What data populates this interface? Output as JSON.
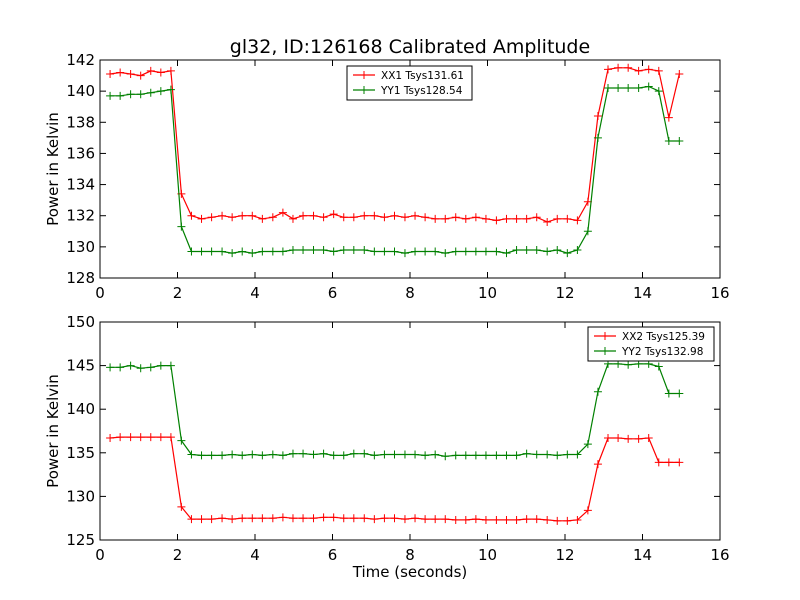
{
  "figure": {
    "title": "gl32, ID:126168 Calibrated Amplitude",
    "background": "#ffffff"
  },
  "chart_data": [
    {
      "type": "line",
      "title": "gl32, ID:126168 Calibrated Amplitude",
      "xlabel": "",
      "ylabel": "Power in Kelvin",
      "xlim": [
        0,
        16
      ],
      "ylim": [
        128,
        142
      ],
      "xticks": [
        0,
        2,
        4,
        6,
        8,
        10,
        12,
        14,
        16
      ],
      "yticks": [
        128,
        130,
        132,
        134,
        136,
        138,
        140,
        142
      ],
      "grid": false,
      "legend_position": "top-center",
      "x": [
        0.26,
        0.52,
        0.79,
        1.05,
        1.31,
        1.57,
        1.83,
        2.1,
        2.36,
        2.62,
        2.88,
        3.15,
        3.41,
        3.67,
        3.93,
        4.19,
        4.46,
        4.72,
        4.98,
        5.24,
        5.51,
        5.77,
        6.03,
        6.29,
        6.55,
        6.82,
        7.08,
        7.34,
        7.6,
        7.87,
        8.13,
        8.39,
        8.65,
        8.91,
        9.18,
        9.44,
        9.7,
        9.96,
        10.23,
        10.49,
        10.75,
        11.01,
        11.27,
        11.54,
        11.8,
        12.06,
        12.32,
        12.59,
        12.85,
        13.11,
        13.37,
        13.63,
        13.9,
        14.16,
        14.42,
        14.68,
        14.95
      ],
      "series": [
        {
          "name": "XX1 Tsys131.61",
          "color": "#ff0000",
          "values": [
            141.1,
            141.2,
            141.1,
            141.0,
            141.3,
            141.2,
            141.3,
            133.4,
            132.0,
            131.8,
            131.9,
            132.0,
            131.9,
            132.0,
            132.0,
            131.8,
            131.9,
            132.2,
            131.8,
            132.0,
            132.0,
            131.9,
            132.1,
            131.9,
            131.9,
            132.0,
            132.0,
            131.9,
            132.0,
            131.9,
            132.0,
            131.9,
            131.8,
            131.8,
            131.9,
            131.8,
            131.9,
            131.8,
            131.7,
            131.8,
            131.8,
            131.8,
            131.9,
            131.6,
            131.8,
            131.8,
            131.7,
            132.9,
            138.4,
            141.4,
            141.5,
            141.5,
            141.3,
            141.4,
            141.3,
            138.3,
            141.1
          ],
          "x_override": [
            0.26,
            0.52,
            0.79,
            1.05,
            1.31,
            1.57,
            1.83,
            2.1,
            2.36,
            2.62,
            2.88,
            3.15,
            3.41,
            3.67,
            3.93,
            4.19,
            4.46,
            4.72,
            4.98,
            5.24,
            5.51,
            5.77,
            6.03,
            6.29,
            6.55,
            6.82,
            7.08,
            7.34,
            7.6,
            7.87,
            8.13,
            8.39,
            8.65,
            8.91,
            9.18,
            9.44,
            9.7,
            9.96,
            10.23,
            10.49,
            10.75,
            11.01,
            11.27,
            11.54,
            11.8,
            12.06,
            12.32,
            12.59,
            12.85,
            13.11,
            13.37,
            13.63,
            13.9,
            14.16,
            14.42,
            14.68,
            14.95
          ]
        },
        {
          "name": "YY1 Tsys128.54",
          "color": "#008000",
          "values": [
            139.7,
            139.7,
            139.8,
            139.8,
            139.9,
            140.0,
            140.1,
            131.3,
            129.7,
            129.7,
            129.7,
            129.7,
            129.6,
            129.7,
            129.6,
            129.7,
            129.7,
            129.7,
            129.8,
            129.8,
            129.8,
            129.8,
            129.7,
            129.8,
            129.8,
            129.8,
            129.7,
            129.7,
            129.7,
            129.6,
            129.7,
            129.7,
            129.7,
            129.6,
            129.7,
            129.7,
            129.7,
            129.7,
            129.7,
            129.6,
            129.8,
            129.8,
            129.8,
            129.7,
            129.8,
            129.6,
            129.8,
            131.0,
            137.0,
            140.2,
            140.2,
            140.2,
            140.2,
            140.3,
            140.0,
            136.8,
            136.8
          ]
        }
      ]
    },
    {
      "type": "line",
      "title": "",
      "xlabel": "Time (seconds)",
      "ylabel": "Power in Kelvin",
      "xlim": [
        0,
        16
      ],
      "ylim": [
        125,
        150
      ],
      "xticks": [
        0,
        2,
        4,
        6,
        8,
        10,
        12,
        14,
        16
      ],
      "yticks": [
        125,
        130,
        135,
        140,
        145,
        150
      ],
      "grid": false,
      "legend_position": "top-right",
      "x": [
        0.26,
        0.52,
        0.79,
        1.05,
        1.31,
        1.57,
        1.83,
        2.1,
        2.36,
        2.62,
        2.88,
        3.15,
        3.41,
        3.67,
        3.93,
        4.19,
        4.46,
        4.72,
        4.98,
        5.24,
        5.51,
        5.77,
        6.03,
        6.29,
        6.55,
        6.82,
        7.08,
        7.34,
        7.6,
        7.87,
        8.13,
        8.39,
        8.65,
        8.91,
        9.18,
        9.44,
        9.7,
        9.96,
        10.23,
        10.49,
        10.75,
        11.01,
        11.27,
        11.54,
        11.8,
        12.06,
        12.32,
        12.59,
        12.85,
        13.11,
        13.37,
        13.63,
        13.9,
        14.16,
        14.42,
        14.68,
        14.95
      ],
      "series": [
        {
          "name": "XX2 Tsys125.39",
          "color": "#ff0000",
          "values": [
            136.7,
            136.8,
            136.8,
            136.8,
            136.8,
            136.8,
            136.8,
            128.8,
            127.4,
            127.4,
            127.4,
            127.5,
            127.4,
            127.5,
            127.5,
            127.5,
            127.5,
            127.6,
            127.5,
            127.5,
            127.5,
            127.6,
            127.6,
            127.5,
            127.5,
            127.5,
            127.4,
            127.5,
            127.5,
            127.4,
            127.5,
            127.4,
            127.4,
            127.4,
            127.3,
            127.3,
            127.4,
            127.3,
            127.3,
            127.3,
            127.3,
            127.4,
            127.4,
            127.3,
            127.2,
            127.2,
            127.3,
            128.4,
            133.7,
            136.7,
            136.7,
            136.6,
            136.6,
            136.7,
            133.9,
            133.9,
            133.9
          ]
        },
        {
          "name": "YY2 Tsys132.98",
          "color": "#008000",
          "values": [
            144.8,
            144.8,
            145.0,
            144.7,
            144.8,
            145.0,
            145.0,
            136.4,
            134.8,
            134.7,
            134.7,
            134.7,
            134.8,
            134.7,
            134.8,
            134.7,
            134.8,
            134.7,
            134.9,
            134.9,
            134.8,
            134.9,
            134.7,
            134.7,
            134.9,
            134.9,
            134.7,
            134.8,
            134.8,
            134.8,
            134.8,
            134.7,
            134.8,
            134.6,
            134.7,
            134.7,
            134.7,
            134.7,
            134.7,
            134.7,
            134.7,
            134.9,
            134.8,
            134.8,
            134.7,
            134.8,
            134.8,
            136.0,
            142.0,
            145.2,
            145.2,
            145.1,
            145.2,
            145.2,
            144.9,
            141.8,
            141.8
          ]
        }
      ]
    }
  ]
}
